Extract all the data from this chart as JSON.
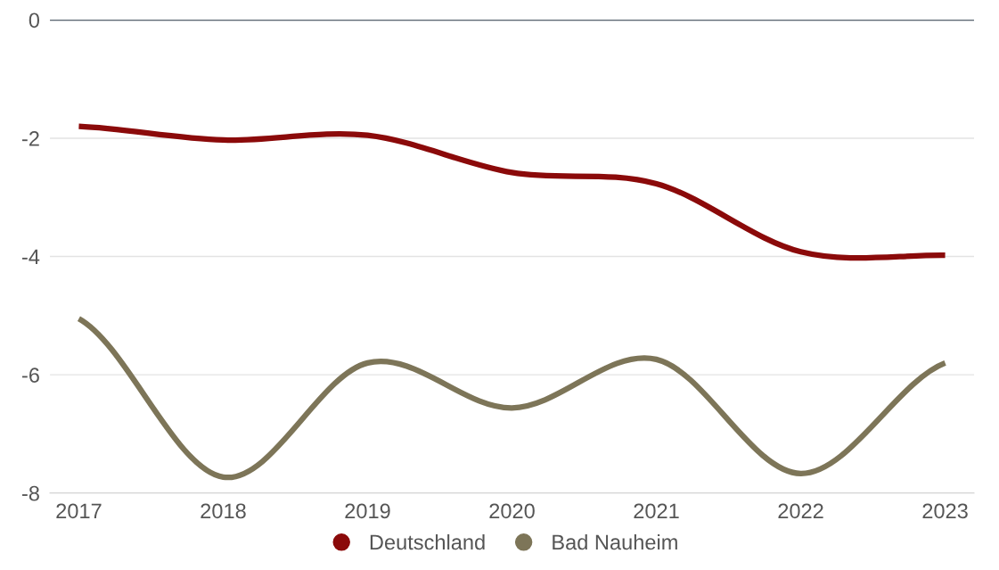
{
  "chart_data": {
    "type": "line",
    "categories": [
      "2017",
      "2018",
      "2019",
      "2020",
      "2021",
      "2022",
      "2023"
    ],
    "series": [
      {
        "name": "Deutschland",
        "color": "#8b0a0a",
        "values": [
          -1.8,
          -2.03,
          -1.95,
          -2.58,
          -2.77,
          -3.92,
          -3.98
        ]
      },
      {
        "name": "Bad Nauheim",
        "color": "#7d7558",
        "values": [
          -5.05,
          -7.73,
          -5.8,
          -6.56,
          -5.74,
          -7.67,
          -5.8
        ]
      }
    ],
    "ylim": [
      -8,
      0
    ],
    "yticks": [
      -8,
      -6,
      -4,
      -2,
      0
    ],
    "grid": "y",
    "legend": "bottom",
    "ref_lines": [
      {
        "axis": "y",
        "value": 0,
        "color": "#2b3a4a"
      }
    ]
  }
}
